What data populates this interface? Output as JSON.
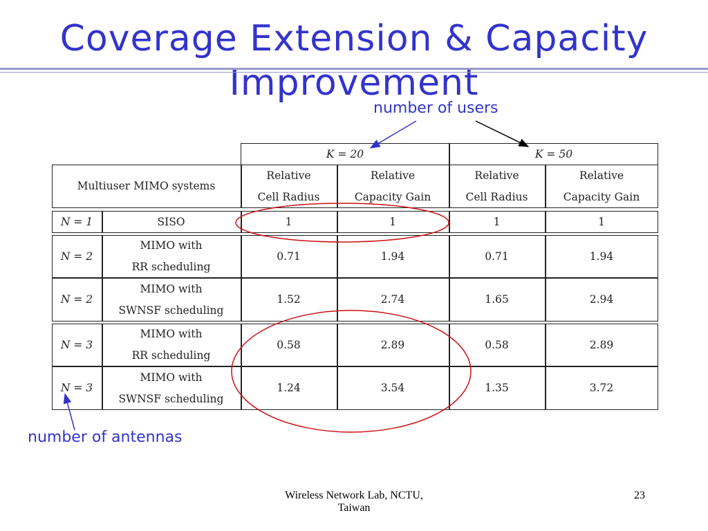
{
  "slide": {
    "title_line1": "Coverage Extension & Capacity",
    "title_line2": "Improvement"
  },
  "annotations": {
    "users": "number of users",
    "antennas": "number of antennas"
  },
  "table": {
    "k_headers": [
      "K = 20",
      "K = 50"
    ],
    "system_header": "Multiuser MIMO systems",
    "col_headers": [
      [
        "Relative",
        "Cell Radius"
      ],
      [
        "Relative",
        "Capacity Gain"
      ],
      [
        "Relative",
        "Cell Radius"
      ],
      [
        "Relative",
        "Capacity Gain"
      ]
    ],
    "rows": [
      {
        "n": "N = 1",
        "system": [
          "SISO"
        ],
        "values": [
          "1",
          "1",
          "1",
          "1"
        ]
      },
      {
        "n": "N = 2",
        "system": [
          "MIMO with",
          "RR scheduling"
        ],
        "values": [
          "0.71",
          "1.94",
          "0.71",
          "1.94"
        ]
      },
      {
        "n": "N = 2",
        "system": [
          "MIMO with",
          "SWNSF scheduling"
        ],
        "values": [
          "1.52",
          "2.74",
          "1.65",
          "2.94"
        ]
      },
      {
        "n": "N = 3",
        "system": [
          "MIMO with",
          "RR scheduling"
        ],
        "values": [
          "0.58",
          "2.89",
          "0.58",
          "2.89"
        ]
      },
      {
        "n": "N = 3",
        "system": [
          "MIMO with",
          "SWNSF scheduling"
        ],
        "values": [
          "1.24",
          "3.54",
          "1.35",
          "3.72"
        ]
      }
    ]
  },
  "footer": {
    "line1": "Wireless Network Lab, NCTU,",
    "line2": "Taiwan",
    "page": "23"
  },
  "colors": {
    "title": "#3333cc",
    "annotation": "#3333cc",
    "highlight_circle": "#cc1111",
    "arrow_users_k20": "#3333cc",
    "arrow_users_k50": "#000000"
  }
}
